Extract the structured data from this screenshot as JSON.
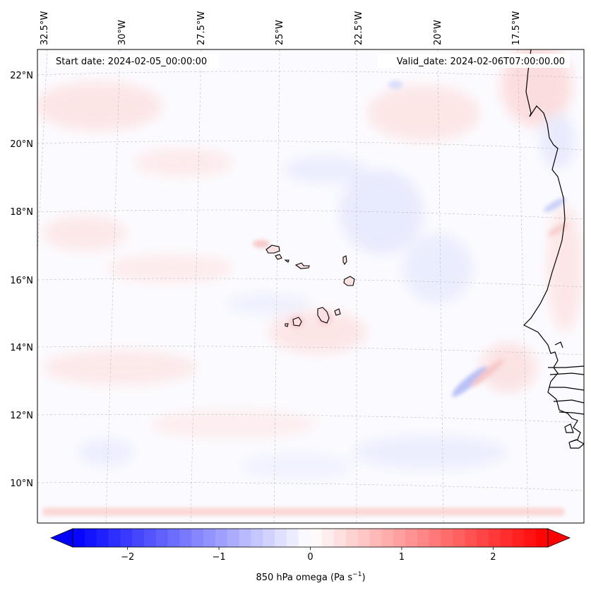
{
  "header": {
    "start_date": "Start date: 2024-02-05_00:00:00",
    "valid_date": "Valid_date: 2024-02-06T07:00:00.00"
  },
  "map": {
    "projection": "lambert-conformal",
    "extent": {
      "lon_min": -33.0,
      "lon_max": -15.5,
      "lat_min": 8.8,
      "lat_max": 22.8
    },
    "gridlines": true,
    "lon_labels": [
      {
        "lon": -32.5,
        "text": "32.5°W"
      },
      {
        "lon": -30.0,
        "text": "30°W"
      },
      {
        "lon": -27.5,
        "text": "27.5°W"
      },
      {
        "lon": -25.0,
        "text": "25°W"
      },
      {
        "lon": -22.5,
        "text": "22.5°W"
      },
      {
        "lon": -20.0,
        "text": "20°W"
      },
      {
        "lon": -17.5,
        "text": "17.5°W"
      }
    ],
    "lat_labels": [
      {
        "lat": 22,
        "text": "22°N"
      },
      {
        "lat": 20,
        "text": "20°N"
      },
      {
        "lat": 18,
        "text": "18°N"
      },
      {
        "lat": 16,
        "text": "16°N"
      },
      {
        "lat": 14,
        "text": "14°N"
      },
      {
        "lat": 12,
        "text": "12°N"
      },
      {
        "lat": 10,
        "text": "10°N"
      }
    ],
    "features": [
      "Cape Verde islands",
      "West African coastline"
    ]
  },
  "colorbar": {
    "label_prefix": "850 hPa omega (Pa s",
    "label_sup": "−1",
    "label_suffix": ")",
    "min": -2.6,
    "max": 2.6,
    "colormap": "bwr",
    "colors": {
      "negative": "#0000ff",
      "zero": "#ffffff",
      "positive": "#ff0000"
    },
    "ticks": [
      {
        "value": -2,
        "text": "−2"
      },
      {
        "value": -1,
        "text": "−1"
      },
      {
        "value": 0,
        "text": "0"
      },
      {
        "value": 1,
        "text": "1"
      },
      {
        "value": 2,
        "text": "2"
      }
    ]
  }
}
